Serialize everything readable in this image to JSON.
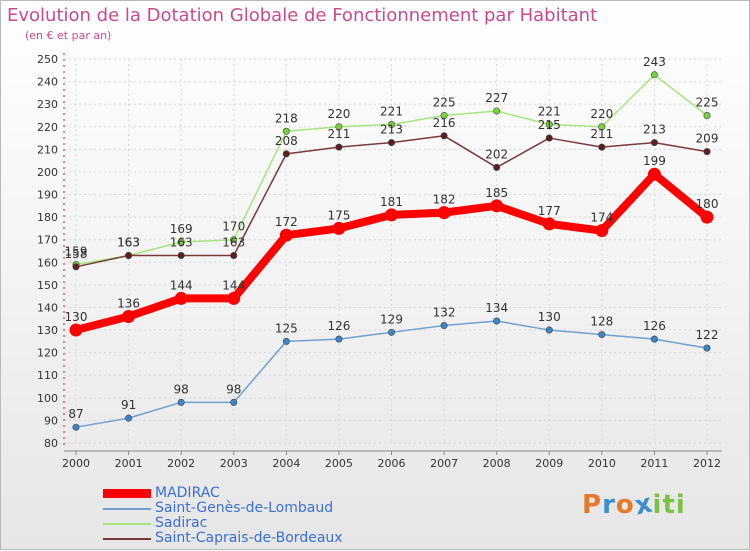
{
  "header": {
    "title": "Evolution de la Dotation Globale de Fonctionnement par Habitant",
    "subtitle": "(en € et par an)"
  },
  "chart_data": {
    "type": "line",
    "title": "Evolution de la Dotation Globale de Fonctionnement par Habitant",
    "subtitle": "(en € et par an)",
    "xlabel": "",
    "ylabel": "",
    "x": [
      "2000",
      "2001",
      "2002",
      "2003",
      "2004",
      "2005",
      "2006",
      "2007",
      "2008",
      "2009",
      "2010",
      "2011",
      "2012"
    ],
    "ylim": [
      80,
      250
    ],
    "yticks": [
      80,
      90,
      100,
      110,
      120,
      130,
      140,
      150,
      160,
      170,
      180,
      190,
      200,
      210,
      220,
      230,
      240,
      250
    ],
    "grid": true,
    "legend_position": "bottom-left",
    "series": [
      {
        "name": "Saint-Genès-de-Lombaud",
        "color": "#6fa0cf",
        "marker_color": "#3d85c6",
        "values": [
          87,
          91,
          98,
          98,
          125,
          126,
          129,
          132,
          134,
          130,
          128,
          126,
          122
        ]
      },
      {
        "name": "Sadirac",
        "color": "#a4e57f",
        "marker_color": "#79d13c",
        "values": [
          159,
          163,
          169,
          170,
          218,
          220,
          221,
          225,
          227,
          221,
          220,
          243,
          225
        ]
      },
      {
        "name": "Saint-Caprais-de-Bordeaux",
        "color": "#7a3a3a",
        "marker_color": "#5c1f1f",
        "values": [
          158,
          163,
          163,
          163,
          208,
          211,
          213,
          216,
          202,
          215,
          211,
          213,
          209
        ]
      },
      {
        "name": "MADIRAC",
        "color": "#ff0000",
        "marker_color": "#ff0000",
        "values": [
          130,
          136,
          144,
          144,
          172,
          175,
          181,
          182,
          185,
          177,
          174,
          199,
          180
        ]
      }
    ],
    "legend": [
      {
        "name": "MADIRAC",
        "color": "#ff0000",
        "text_color": "#3a6fd8"
      },
      {
        "name": "Saint-Genès-de-Lombaud",
        "color": "#6fa0cf",
        "text_color": "#3a6fd8"
      },
      {
        "name": "Sadirac",
        "color": "#a4e57f",
        "text_color": "#3a6fd8"
      },
      {
        "name": "Saint-Caprais-de-Bordeaux",
        "color": "#7a3a3a",
        "text_color": "#3a6fd8"
      }
    ]
  },
  "brand": {
    "letters": [
      "P",
      "r",
      "o",
      "x",
      "i",
      "t",
      "i"
    ],
    "colors": [
      "#e8792b",
      "#3b8fd1",
      "#e8792b",
      "#3b8fd1",
      "#7cc242",
      "#7cc242",
      "#7cc242"
    ]
  }
}
